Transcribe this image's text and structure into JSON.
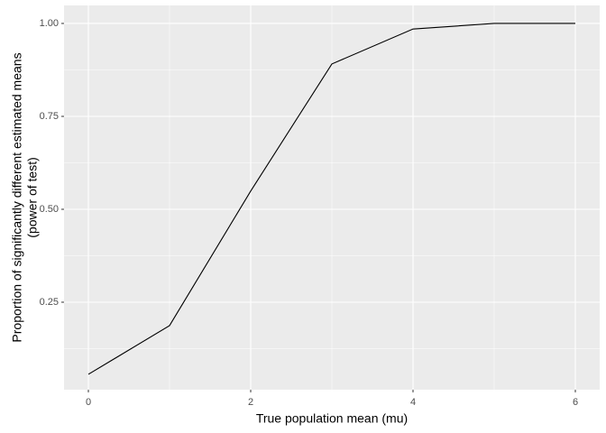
{
  "chart_data": {
    "type": "line",
    "xlabel": "True population mean (mu)",
    "ylabel": [
      "Proportion of significantly different estimated means",
      "(power of test)"
    ],
    "x": [
      0,
      1,
      2,
      3,
      4,
      5,
      6
    ],
    "series": [
      {
        "name": "power",
        "color": "#000000",
        "values": [
          0.056,
          0.187,
          0.549,
          0.891,
          0.985,
          1.0,
          1.0
        ]
      }
    ],
    "xlim": [
      -0.3,
      6.3
    ],
    "ylim": [
      0.0146,
      1.0485
    ],
    "xticks": [
      0,
      2,
      4,
      6
    ],
    "yticks": [
      {
        "value": 0.25,
        "label": "0.25"
      },
      {
        "value": 0.5,
        "label": "0.50"
      },
      {
        "value": 0.75,
        "label": "0.75"
      },
      {
        "value": 1.0,
        "label": "1.00"
      }
    ],
    "x_minor_ticks": [
      1,
      3,
      5
    ],
    "y_minor_ticks": [
      0.125,
      0.375,
      0.625,
      0.875
    ],
    "grid": true,
    "panel_color": "#ebebeb"
  }
}
